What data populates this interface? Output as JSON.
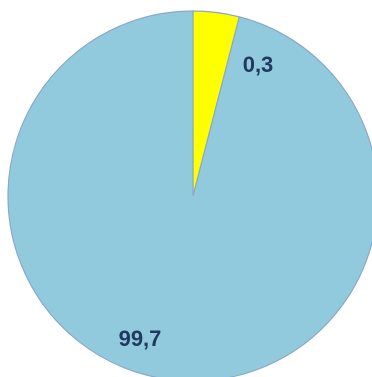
{
  "chart_data": {
    "type": "pie",
    "title": "",
    "start_angle_deg": 0,
    "direction": "clockwise",
    "slices": [
      {
        "value": 0.3,
        "label": "0,3",
        "color": "#ffff00"
      },
      {
        "value": 99.7,
        "label": "99,7",
        "color": "#92cadd"
      }
    ],
    "stroke_color": "#8aa8c8",
    "label_color": "#1f3a5f",
    "legend": false
  }
}
